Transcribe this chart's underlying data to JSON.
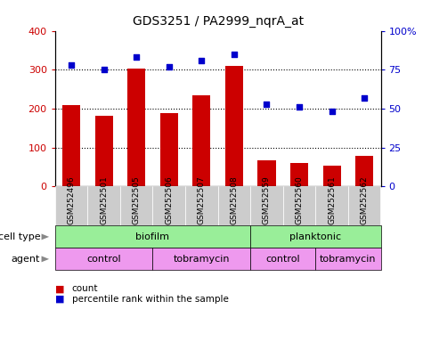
{
  "title": "GDS3251 / PA2999_nqrA_at",
  "samples": [
    "GSM252496",
    "GSM252501",
    "GSM252505",
    "GSM252506",
    "GSM252507",
    "GSM252508",
    "GSM252559",
    "GSM252560",
    "GSM252561",
    "GSM252562"
  ],
  "counts": [
    208,
    182,
    302,
    188,
    234,
    310,
    68,
    60,
    53,
    79
  ],
  "percentile_ranks": [
    78,
    75,
    83,
    77,
    81,
    85,
    53,
    51,
    48,
    57
  ],
  "ylim_left": [
    0,
    400
  ],
  "ylim_right": [
    0,
    100
  ],
  "yticks_left": [
    0,
    100,
    200,
    300,
    400
  ],
  "yticks_right": [
    0,
    25,
    50,
    75,
    100
  ],
  "yticklabels_right": [
    "0",
    "25",
    "50",
    "75",
    "100%"
  ],
  "bar_color": "#cc0000",
  "dot_color": "#0000cc",
  "cell_type_color": "#99ee99",
  "agent_color": "#ee99ee",
  "tick_bg_color": "#cccccc",
  "legend_count_color": "#cc0000",
  "legend_dot_color": "#0000cc",
  "legend_count_label": "count",
  "legend_dot_label": "percentile rank within the sample",
  "bar_width": 0.55,
  "annotation_row1_label": "cell type",
  "annotation_row2_label": "agent",
  "tick_label_color_left": "#cc0000",
  "tick_label_color_right": "#0000cc",
  "cell_type_groups": [
    {
      "label": "biofilm",
      "start": 0,
      "end": 5
    },
    {
      "label": "planktonic",
      "start": 6,
      "end": 9
    }
  ],
  "agent_groups": [
    {
      "label": "control",
      "start": 0,
      "end": 2
    },
    {
      "label": "tobramycin",
      "start": 3,
      "end": 5
    },
    {
      "label": "control",
      "start": 6,
      "end": 7
    },
    {
      "label": "tobramycin",
      "start": 8,
      "end": 9
    }
  ]
}
